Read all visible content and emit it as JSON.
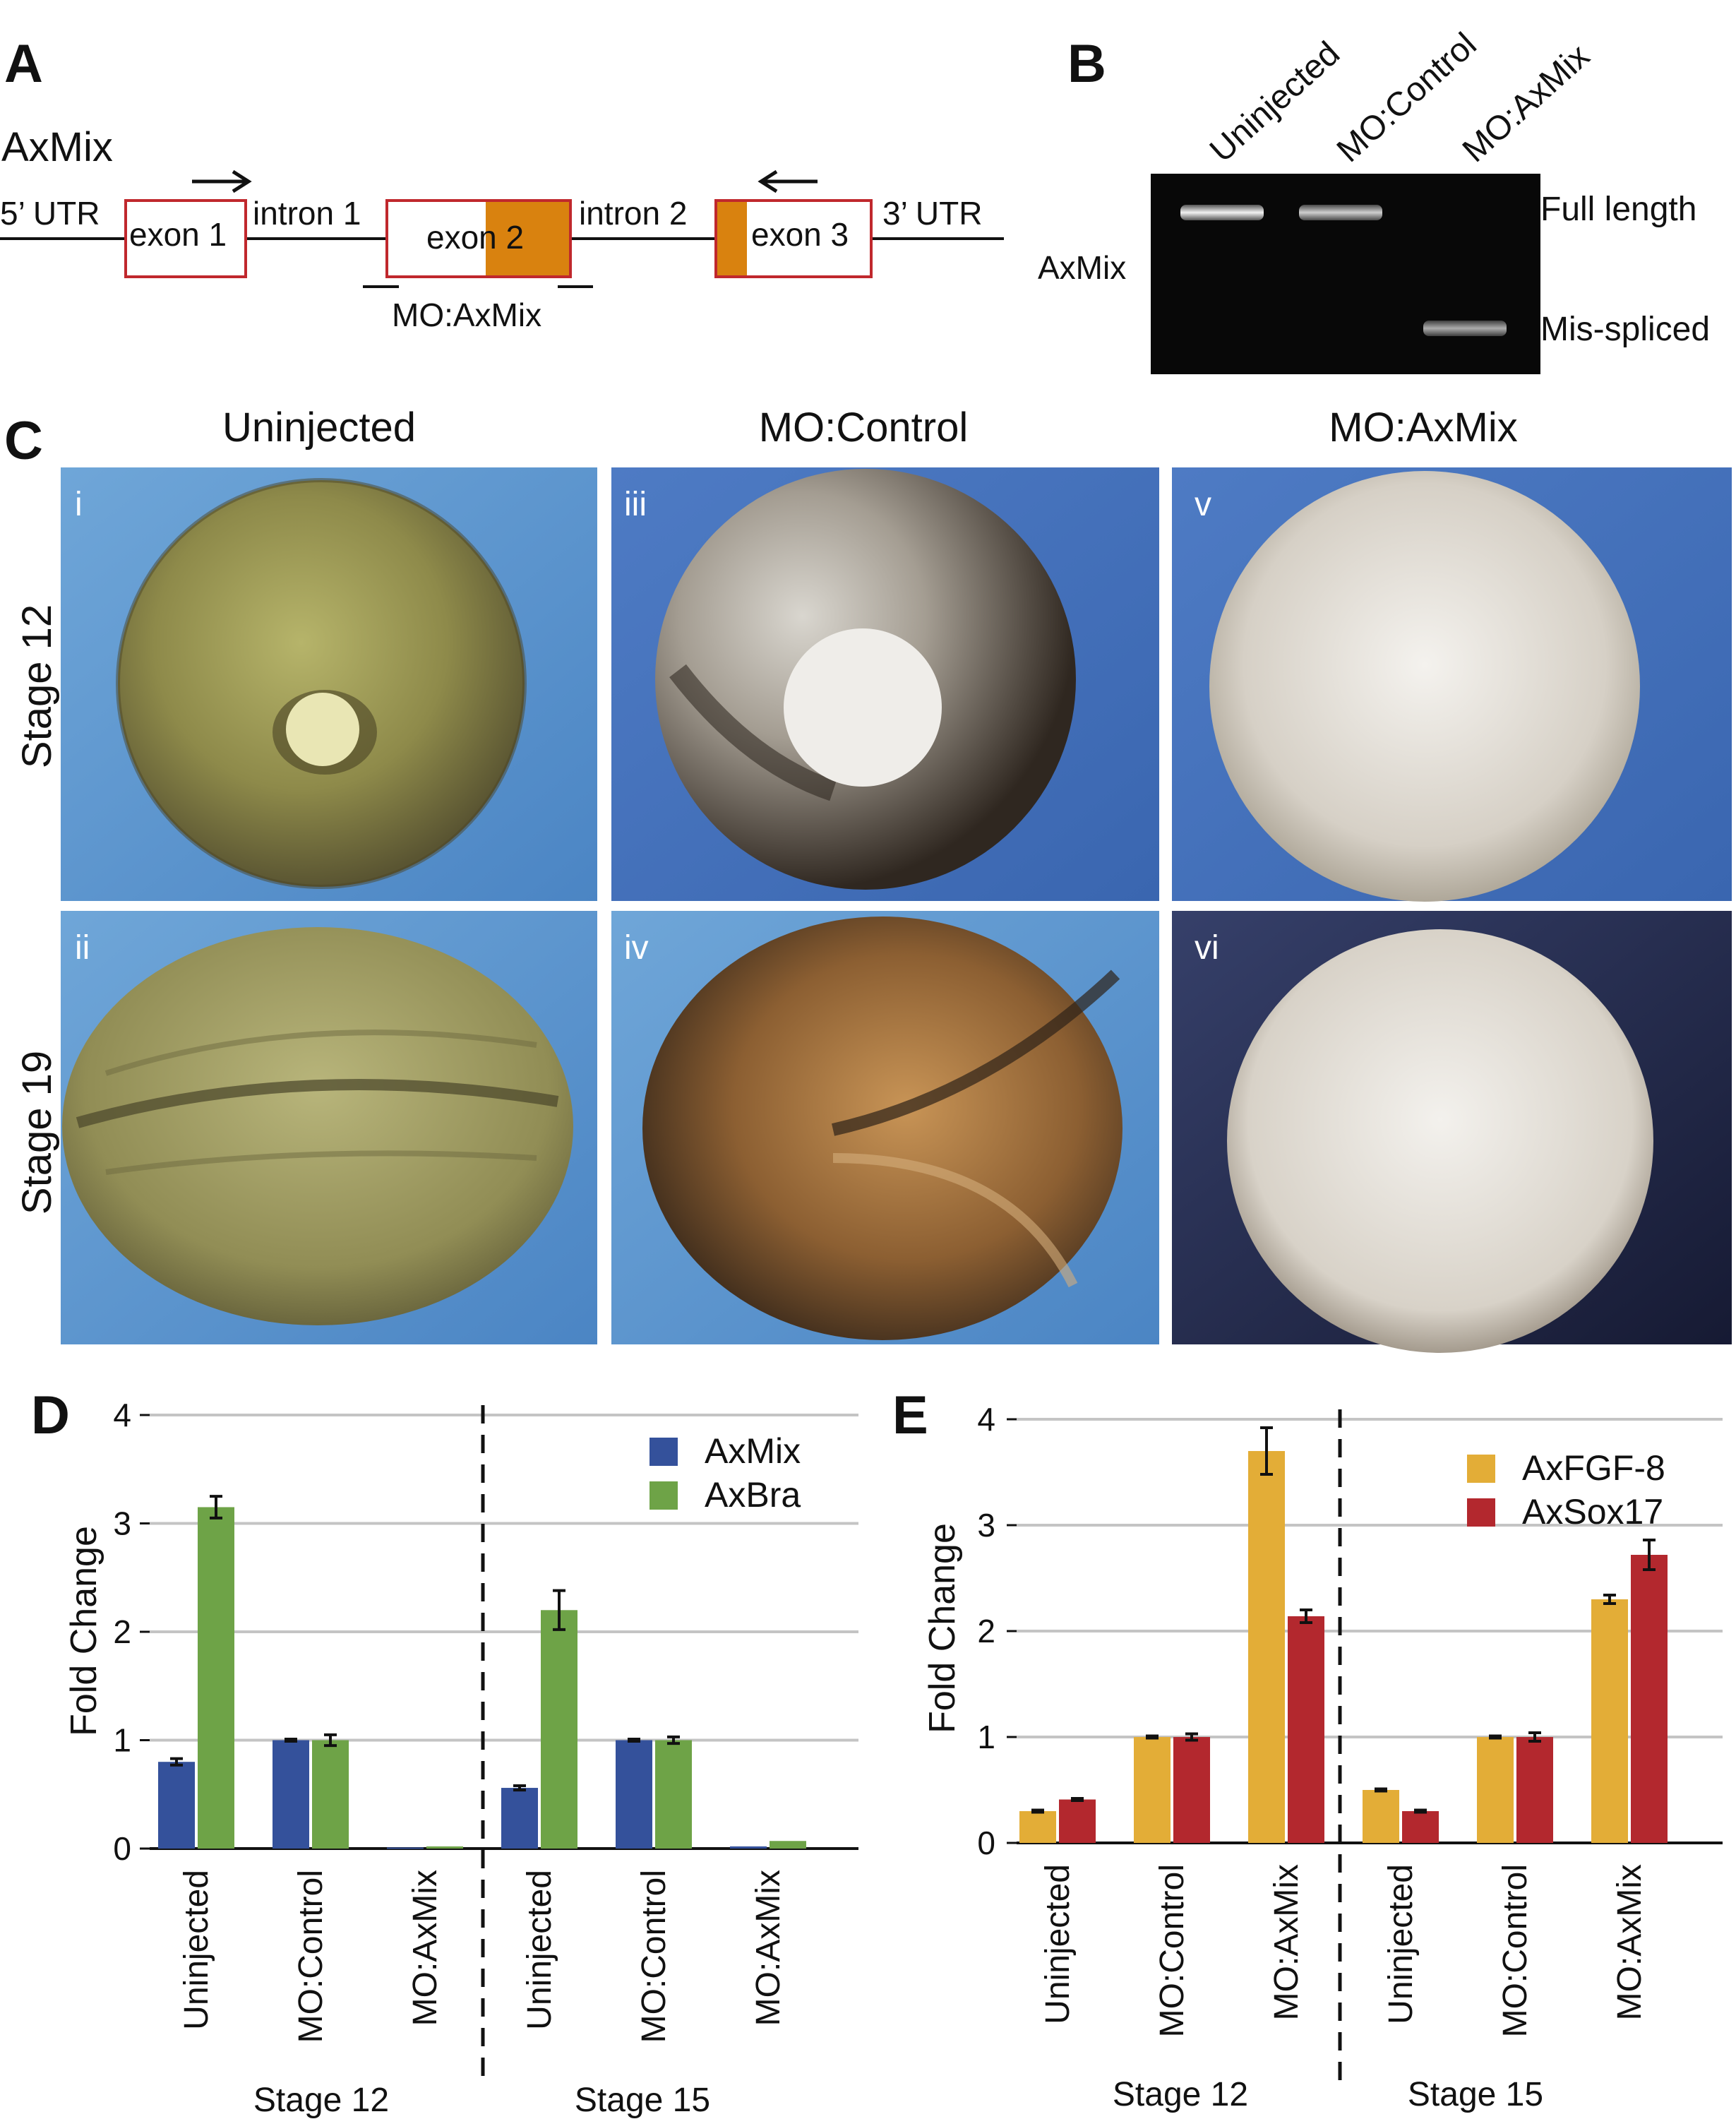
{
  "panel_a": {
    "letter": "A",
    "gene": "AxMix",
    "segments": [
      "5’ UTR",
      "exon 1",
      "intron 1",
      "exon 2",
      "intron 2",
      "exon 3",
      "3’ UTR"
    ],
    "morpholino": "MO:AxMix",
    "colors": {
      "exon_outline": "#c0282d",
      "exon_fill": "#d9820f"
    }
  },
  "panel_b": {
    "letter": "B",
    "lanes": [
      "Uninjected",
      "MO:Control",
      "MO:AxMix"
    ],
    "row_label": "AxMix",
    "bands": [
      "Full length",
      "Mis-spliced"
    ]
  },
  "panel_c": {
    "letter": "C",
    "columns": [
      "Uninjected",
      "MO:Control",
      "MO:AxMix"
    ],
    "rows": [
      "Stage 12",
      "Stage 19"
    ],
    "tiles": [
      "i",
      "ii",
      "iii",
      "iv",
      "v",
      "vi"
    ]
  },
  "chart_data": [
    {
      "panel": "D",
      "type": "bar",
      "ylabel": "Fold Change",
      "ylim": [
        0,
        4
      ],
      "yticks": [
        "0",
        "1",
        "2",
        "3",
        "4"
      ],
      "categories": [
        "Uninjected",
        "MO:Control",
        "MO:AxMix",
        "Uninjected",
        "MO:Control",
        "MO:AxMix"
      ],
      "groups": [
        "Stage 12",
        "Stage 15"
      ],
      "series": [
        {
          "name": "AxMix",
          "color": "#34519b",
          "values": [
            0.8,
            1.0,
            0.01,
            0.56,
            1.0,
            0.02
          ],
          "errors": [
            0.03,
            0.01,
            0.0,
            0.02,
            0.01,
            0.0
          ]
        },
        {
          "name": "AxBra",
          "color": "#6ea347",
          "values": [
            3.15,
            1.0,
            0.02,
            2.2,
            1.0,
            0.07
          ],
          "errors": [
            0.1,
            0.05,
            0.0,
            0.18,
            0.03,
            0.0
          ]
        }
      ],
      "legend": "top-right",
      "grid": true
    },
    {
      "panel": "E",
      "type": "bar",
      "ylabel": "Fold Change",
      "ylim": [
        0,
        4
      ],
      "yticks": [
        "0",
        "1",
        "2",
        "3",
        "4"
      ],
      "categories": [
        "Uninjected",
        "MO:Control",
        "MO:AxMix",
        "Uninjected",
        "MO:Control",
        "MO:AxMix"
      ],
      "groups": [
        "Stage 12",
        "Stage 15"
      ],
      "series": [
        {
          "name": "AxFGF-8",
          "color": "#e3ad37",
          "values": [
            0.3,
            1.0,
            3.7,
            0.5,
            1.0,
            2.3
          ],
          "errors": [
            0.01,
            0.01,
            0.22,
            0.01,
            0.01,
            0.04
          ]
        },
        {
          "name": "AxSox17",
          "color": "#b3282e",
          "values": [
            0.41,
            1.0,
            2.14,
            0.3,
            1.0,
            2.72
          ],
          "errors": [
            0.01,
            0.03,
            0.06,
            0.01,
            0.04,
            0.14
          ]
        }
      ],
      "legend": "top-right",
      "grid": true
    }
  ]
}
